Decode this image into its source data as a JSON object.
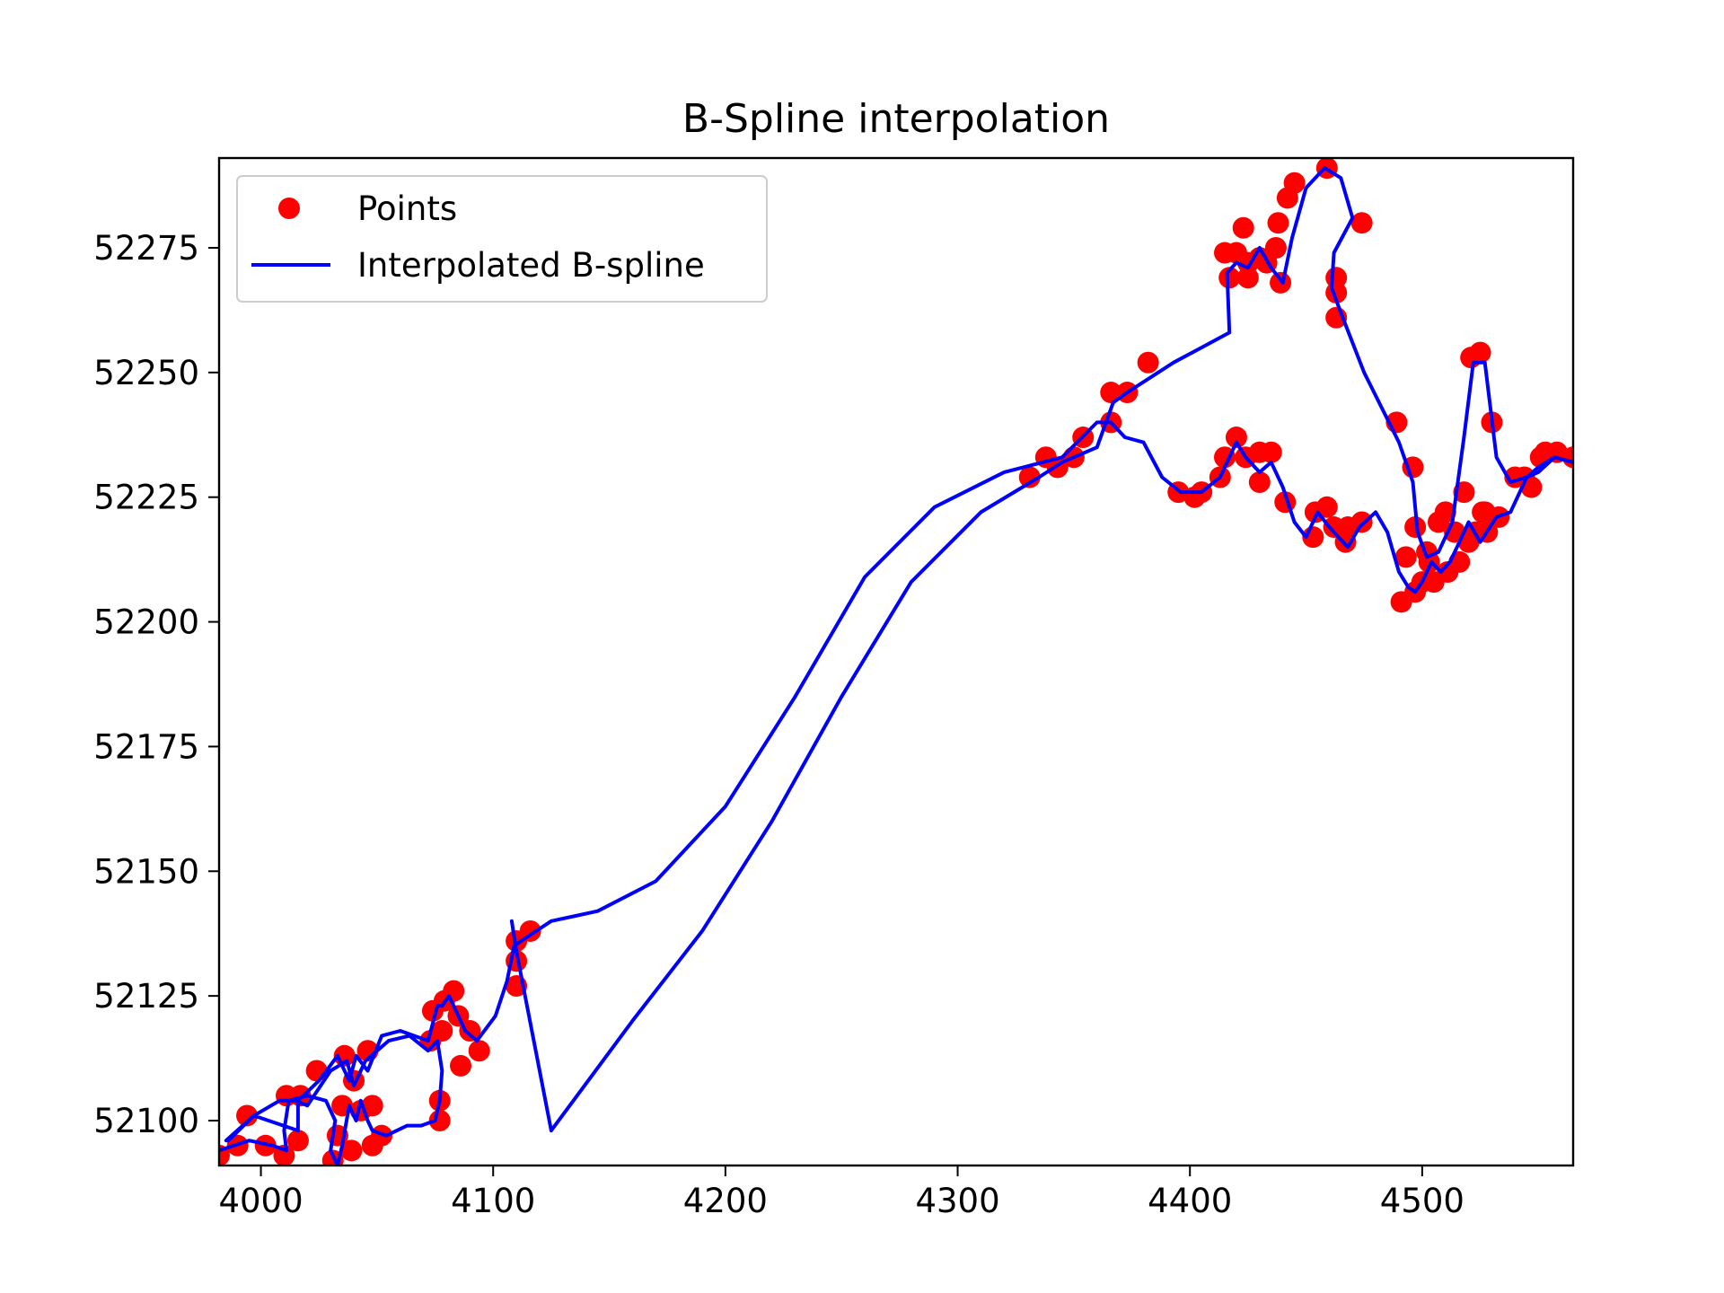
{
  "chart_data": {
    "type": "scatter",
    "title": "B-Spline interpolation",
    "xlabel": "",
    "ylabel": "",
    "xlim": [
      3982,
      4565
    ],
    "ylim": [
      52091,
      52293
    ],
    "xticks": [
      4000,
      4100,
      4200,
      4300,
      4400,
      4500
    ],
    "yticks": [
      52100,
      52125,
      52150,
      52175,
      52200,
      52225,
      52250,
      52275
    ],
    "grid": false,
    "legend_position": "top-left",
    "legend": [
      {
        "label": "Points",
        "marker": "circle",
        "color": "#ff0000"
      },
      {
        "label": "Interpolated B-spline",
        "marker": "line",
        "color": "#0000ff"
      }
    ],
    "colors": {
      "points": "#ff0000",
      "spline": "#0000ff"
    },
    "series": [
      {
        "name": "Points",
        "kind": "scatter",
        "points": [
          [
            3982,
            52093
          ],
          [
            3990,
            52095
          ],
          [
            3994,
            52101
          ],
          [
            4002,
            52095
          ],
          [
            4010,
            52093
          ],
          [
            4011,
            52105
          ],
          [
            4016,
            52096
          ],
          [
            4017,
            52105
          ],
          [
            4024,
            52110
          ],
          [
            4031,
            52092
          ],
          [
            4033,
            52097
          ],
          [
            4035,
            52103
          ],
          [
            4036,
            52113
          ],
          [
            4039,
            52094
          ],
          [
            4040,
            52108
          ],
          [
            4043,
            52102
          ],
          [
            4046,
            52114
          ],
          [
            4048,
            52103
          ],
          [
            4048,
            52095
          ],
          [
            4052,
            52097
          ],
          [
            4073,
            52116
          ],
          [
            4074,
            52122
          ],
          [
            4077,
            52100
          ],
          [
            4077,
            52104
          ],
          [
            4078,
            52118
          ],
          [
            4079,
            52124
          ],
          [
            4083,
            52126
          ],
          [
            4085,
            52121
          ],
          [
            4086,
            52111
          ],
          [
            4090,
            52118
          ],
          [
            4094,
            52114
          ],
          [
            4110,
            52127
          ],
          [
            4110,
            52132
          ],
          [
            4110,
            52136
          ],
          [
            4116,
            52138
          ],
          [
            4331,
            52229
          ],
          [
            4338,
            52233
          ],
          [
            4343,
            52231
          ],
          [
            4350,
            52233
          ],
          [
            4354,
            52237
          ],
          [
            4366,
            52240
          ],
          [
            4366,
            52246
          ],
          [
            4373,
            52246
          ],
          [
            4382,
            52252
          ],
          [
            4395,
            52226
          ],
          [
            4402,
            52225
          ],
          [
            4405,
            52226
          ],
          [
            4413,
            52229
          ],
          [
            4415,
            52233
          ],
          [
            4415,
            52274
          ],
          [
            4417,
            52269
          ],
          [
            4420,
            52237
          ],
          [
            4420,
            52274
          ],
          [
            4423,
            52279
          ],
          [
            4424,
            52233
          ],
          [
            4425,
            52272
          ],
          [
            4425,
            52269
          ],
          [
            4430,
            52234
          ],
          [
            4430,
            52228
          ],
          [
            4430,
            52273
          ],
          [
            4433,
            52272
          ],
          [
            4435,
            52234
          ],
          [
            4437,
            52275
          ],
          [
            4438,
            52280
          ],
          [
            4439,
            52268
          ],
          [
            4441,
            52224
          ],
          [
            4442,
            52285
          ],
          [
            4445,
            52288
          ],
          [
            4453,
            52217
          ],
          [
            4454,
            52222
          ],
          [
            4459,
            52223
          ],
          [
            4459,
            52291
          ],
          [
            4462,
            52219
          ],
          [
            4463,
            52266
          ],
          [
            4463,
            52261
          ],
          [
            4463,
            52269
          ],
          [
            4467,
            52216
          ],
          [
            4468,
            52219
          ],
          [
            4474,
            52220
          ],
          [
            4474,
            52280
          ],
          [
            4489,
            52240
          ],
          [
            4491,
            52204
          ],
          [
            4493,
            52213
          ],
          [
            4496,
            52231
          ],
          [
            4497,
            52219
          ],
          [
            4497,
            52206
          ],
          [
            4500,
            52208
          ],
          [
            4502,
            52214
          ],
          [
            4503,
            52212
          ],
          [
            4505,
            52208
          ],
          [
            4507,
            52220
          ],
          [
            4510,
            52222
          ],
          [
            4511,
            52210
          ],
          [
            4514,
            52218
          ],
          [
            4516,
            52212
          ],
          [
            4518,
            52226
          ],
          [
            4520,
            52216
          ],
          [
            4521,
            52253
          ],
          [
            4523,
            52218
          ],
          [
            4525,
            52254
          ],
          [
            4526,
            52222
          ],
          [
            4527,
            52222
          ],
          [
            4528,
            52218
          ],
          [
            4530,
            52240
          ],
          [
            4533,
            52221
          ],
          [
            4540,
            52229
          ],
          [
            4544,
            52229
          ],
          [
            4547,
            52227
          ],
          [
            4551,
            52233
          ],
          [
            4553,
            52234
          ],
          [
            4558,
            52234
          ],
          [
            4565,
            52233
          ]
        ]
      },
      {
        "name": "Interpolated B-spline",
        "kind": "line",
        "points": [
          [
            3982,
            52094
          ],
          [
            3995,
            52096
          ],
          [
            4005,
            52095
          ],
          [
            4011,
            52094
          ],
          [
            4010,
            52098
          ],
          [
            4012,
            52104
          ],
          [
            4020,
            52105
          ],
          [
            4028,
            52104
          ],
          [
            4032,
            52100
          ],
          [
            4030,
            52094
          ],
          [
            4033,
            52091
          ],
          [
            4035,
            52095
          ],
          [
            4038,
            52103
          ],
          [
            4041,
            52100
          ],
          [
            4043,
            52104
          ],
          [
            4046,
            52100
          ],
          [
            4048,
            52098
          ],
          [
            4054,
            52097
          ],
          [
            4063,
            52099
          ],
          [
            4069,
            52099
          ],
          [
            4075,
            52100
          ],
          [
            4077,
            52104
          ],
          [
            4078,
            52110
          ],
          [
            4076,
            52116
          ],
          [
            4072,
            52114
          ],
          [
            4064,
            52117
          ],
          [
            4055,
            52116
          ],
          [
            4045,
            52112
          ],
          [
            4040,
            52107
          ],
          [
            4037,
            52112
          ],
          [
            4030,
            52110
          ],
          [
            4020,
            52103
          ],
          [
            4015,
            52104
          ],
          [
            4008,
            52104
          ],
          [
            3997,
            52101
          ],
          [
            3985,
            52096
          ],
          [
            3986,
            52096
          ],
          [
            3997,
            52101
          ],
          [
            4016,
            52098
          ],
          [
            4016,
            52104
          ],
          [
            4025,
            52108
          ],
          [
            4033,
            52113
          ],
          [
            4038,
            52108
          ],
          [
            4041,
            52113
          ],
          [
            4046,
            52110
          ],
          [
            4052,
            52117
          ],
          [
            4060,
            52118
          ],
          [
            4072,
            52116
          ],
          [
            4076,
            52123
          ],
          [
            4078,
            52123
          ],
          [
            4081,
            52125
          ],
          [
            4084,
            52122
          ],
          [
            4088,
            52118
          ],
          [
            4093,
            52116
          ],
          [
            4101,
            52121
          ],
          [
            4106,
            52128
          ],
          [
            4109,
            52135
          ],
          [
            4112,
            52136
          ],
          [
            4125,
            52140
          ],
          [
            4145,
            52142
          ],
          [
            4170,
            52148
          ],
          [
            4200,
            52163
          ],
          [
            4230,
            52185
          ],
          [
            4260,
            52209
          ],
          [
            4290,
            52223
          ],
          [
            4320,
            52230
          ],
          [
            4345,
            52233
          ],
          [
            4360,
            52240
          ],
          [
            4366,
            52240
          ],
          [
            4372,
            52237
          ],
          [
            4380,
            52236
          ],
          [
            4388,
            52229
          ],
          [
            4396,
            52226
          ],
          [
            4405,
            52226
          ],
          [
            4413,
            52229
          ],
          [
            4416,
            52232
          ],
          [
            4420,
            52236
          ],
          [
            4424,
            52233
          ],
          [
            4430,
            52230
          ],
          [
            4435,
            52232
          ],
          [
            4440,
            52227
          ],
          [
            4445,
            52220
          ],
          [
            4450,
            52217
          ],
          [
            4455,
            52222
          ],
          [
            4460,
            52219
          ],
          [
            4468,
            52215
          ],
          [
            4473,
            52219
          ],
          [
            4480,
            52222
          ],
          [
            4485,
            52218
          ],
          [
            4490,
            52210
          ],
          [
            4494,
            52207
          ],
          [
            4497,
            52206
          ],
          [
            4500,
            52208
          ],
          [
            4504,
            52212
          ],
          [
            4508,
            52210
          ],
          [
            4512,
            52212
          ],
          [
            4516,
            52216
          ],
          [
            4520,
            52220
          ],
          [
            4525,
            52216
          ],
          [
            4532,
            52221
          ],
          [
            4538,
            52222
          ],
          [
            4545,
            52229
          ],
          [
            4550,
            52231
          ],
          [
            4557,
            52233
          ],
          [
            4565,
            52232
          ],
          [
            4565,
            52232
          ],
          [
            4557,
            52233
          ],
          [
            4550,
            52230
          ],
          [
            4545,
            52229
          ],
          [
            4538,
            52228
          ],
          [
            4532,
            52233
          ],
          [
            4527,
            52252
          ],
          [
            4522,
            52252
          ],
          [
            4518,
            52237
          ],
          [
            4513,
            52220
          ],
          [
            4507,
            52214
          ],
          [
            4502,
            52213
          ],
          [
            4498,
            52218
          ],
          [
            4496,
            52228
          ],
          [
            4490,
            52236
          ],
          [
            4475,
            52250
          ],
          [
            4465,
            52262
          ],
          [
            4461,
            52267
          ],
          [
            4462,
            52274
          ],
          [
            4470,
            52281
          ],
          [
            4465,
            52289
          ],
          [
            4458,
            52291
          ],
          [
            4450,
            52287
          ],
          [
            4444,
            52277
          ],
          [
            4440,
            52268
          ],
          [
            4435,
            52271
          ],
          [
            4430,
            52275
          ],
          [
            4425,
            52271
          ],
          [
            4420,
            52272
          ],
          [
            4416,
            52270
          ],
          [
            4417,
            52258
          ],
          [
            4405,
            52255
          ],
          [
            4393,
            52252
          ],
          [
            4383,
            52249
          ],
          [
            4373,
            52246
          ],
          [
            4367,
            52244
          ],
          [
            4360,
            52235
          ],
          [
            4345,
            52232
          ],
          [
            4335,
            52229
          ],
          [
            4310,
            52222
          ],
          [
            4280,
            52208
          ],
          [
            4250,
            52185
          ],
          [
            4220,
            52160
          ],
          [
            4190,
            52138
          ],
          [
            4160,
            52120
          ],
          [
            4125,
            52098
          ],
          [
            4110,
            52134
          ],
          [
            4108,
            52140
          ]
        ]
      }
    ]
  }
}
